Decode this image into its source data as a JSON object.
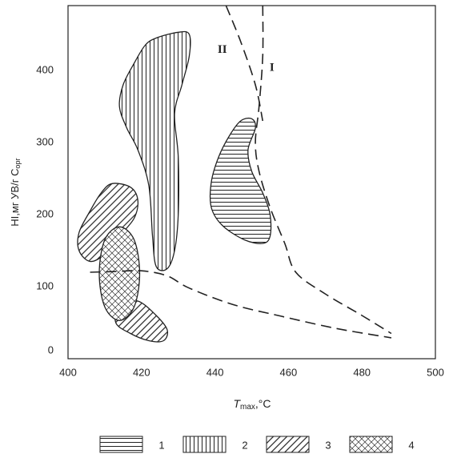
{
  "chart_data": {
    "type": "line",
    "xlabel": {
      "text": "T",
      "sub": "max",
      "tail": ",°C"
    },
    "ylabel": {
      "text": "HI,мг УВ/г C",
      "sub": "орг"
    },
    "xlim": [
      400,
      500
    ],
    "ylim": [
      0,
      490
    ],
    "xticks": [
      400,
      420,
      440,
      460,
      480,
      500
    ],
    "yticks": [
      0,
      100,
      200,
      300,
      400
    ],
    "series": [
      {
        "name": "I",
        "color": "#222222",
        "x": [
          453,
          453,
          452,
          451,
          452,
          455,
          459,
          462,
          470,
          480,
          488
        ],
        "values": [
          490,
          420,
          350,
          300,
          260,
          210,
          160,
          120,
          90,
          60,
          35
        ]
      },
      {
        "name": "II",
        "color": "#222222",
        "x": [
          443,
          447,
          451,
          453
        ],
        "values": [
          490,
          440,
          380,
          330
        ]
      },
      {
        "color": "#222222",
        "x": [
          406,
          413,
          420,
          427,
          433,
          445,
          458,
          473,
          488
        ],
        "values": [
          120,
          121,
          122,
          115,
          98,
          75,
          59,
          42,
          29
        ]
      }
    ],
    "annotations": [
      {
        "text": "II",
        "x": 442,
        "y": 428
      },
      {
        "text": "I",
        "x": 455.5,
        "y": 403
      }
    ],
    "regions": [
      {
        "label": "1",
        "pattern": "horizontal",
        "x": [
          447,
          450,
          451,
          449,
          450,
          453,
          455,
          455,
          453,
          448,
          442,
          439,
          439,
          441,
          444
        ],
        "y": [
          330,
          333,
          320,
          290,
          260,
          230,
          200,
          170,
          160,
          165,
          185,
          210,
          245,
          280,
          310
        ]
      },
      {
        "label": "2",
        "pattern": "vertical",
        "x": [
          424,
          430,
          433,
          433,
          431,
          429,
          430,
          430,
          429,
          427,
          424,
          423,
          422,
          419,
          416,
          414,
          415,
          418,
          421
        ],
        "y": [
          445,
          453,
          450,
          420,
          380,
          340,
          280,
          200,
          150,
          125,
          128,
          170,
          240,
          290,
          320,
          350,
          380,
          410,
          435
        ]
      },
      {
        "label": "3",
        "pattern": "diagonal",
        "x": [
          412,
          417,
          419,
          418,
          414,
          410,
          406,
          403,
          403,
          406,
          409
        ],
        "y": [
          243,
          238,
          220,
          195,
          170,
          145,
          135,
          150,
          175,
          205,
          230
        ]
      },
      {
        "pattern": "diagonal",
        "x": [
          414,
          419,
          424,
          427,
          426,
          422,
          417,
          413
        ],
        "y": [
          75,
          80,
          60,
          40,
          25,
          25,
          35,
          50
        ]
      },
      {
        "label": "4",
        "pattern": "cross",
        "x": [
          414,
          418,
          419.5,
          418,
          414,
          410,
          408.5,
          410
        ],
        "y": [
          183,
          165,
          118,
          72,
          53,
          72,
          118,
          165
        ]
      }
    ]
  }
}
